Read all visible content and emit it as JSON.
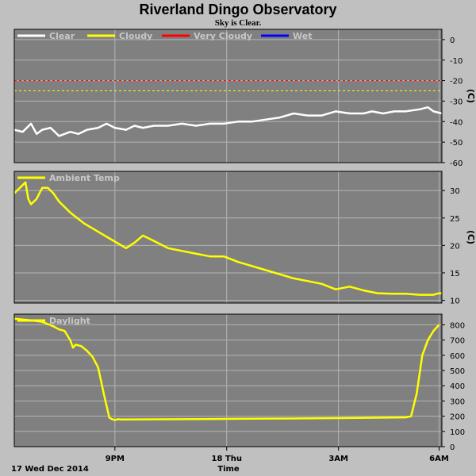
{
  "title": "Riverland Dingo Observatory",
  "subtitle": "Sky is Clear.",
  "colors": {
    "clear": "#ffffff",
    "cloudy": "#ffff00",
    "very_cloudy": "#ff0000",
    "wet": "#0000ff",
    "panel_bg": "#808080",
    "page_bg": "#c0c0c0",
    "grid": "#b4b4b4"
  },
  "x_axis": {
    "label": "Time",
    "date_label": "17 Wed Dec 2014",
    "ticks": [
      "9PM",
      "18 Thu",
      "3AM",
      "6AM"
    ]
  },
  "chart_data": [
    {
      "type": "line",
      "name": "sky",
      "unit": "(C)",
      "ylim": [
        -60,
        5
      ],
      "yticks": [
        0,
        -10,
        -20,
        -30,
        -40,
        -50,
        -60
      ],
      "legend": [
        "Clear",
        "Cloudy",
        "Very Cloudy",
        "Wet"
      ],
      "thresholds": [
        {
          "value": -20,
          "color": "#ff0000"
        },
        {
          "value": -25,
          "color": "#ffff00"
        }
      ],
      "series": [
        {
          "name": "Clear",
          "x": [
            0,
            0.3,
            0.6,
            0.8,
            1.0,
            1.3,
            1.6,
            2.0,
            2.3,
            2.6,
            3.0,
            3.3,
            3.6,
            4.0,
            4.3,
            4.6,
            5.0,
            5.5,
            6.0,
            6.5,
            7.0,
            7.5,
            8.0,
            8.5,
            9.0,
            9.5,
            10.0,
            10.5,
            11.0,
            11.5,
            12.0,
            12.5,
            12.8,
            13.2,
            13.6,
            14.0,
            14.5,
            14.8,
            15.0,
            15.3
          ],
          "y": [
            -44,
            -45,
            -41,
            -46,
            -44,
            -43,
            -47,
            -45,
            -46,
            -44,
            -43,
            -41,
            -43,
            -44,
            -42,
            -43,
            -42,
            -42,
            -41,
            -42,
            -41,
            -41,
            -40,
            -40,
            -39,
            -38,
            -36,
            -37,
            -37,
            -35,
            -36,
            -36,
            -35,
            -36,
            -35,
            -35,
            -34,
            -33,
            -35,
            -36
          ]
        }
      ]
    },
    {
      "type": "line",
      "name": "ambient",
      "unit": "(C)",
      "ylim": [
        9.5,
        33.5
      ],
      "yticks": [
        30,
        25,
        20,
        15,
        10
      ],
      "legend": [
        "Ambient Temp"
      ],
      "series": [
        {
          "name": "Ambient Temp",
          "x": [
            0,
            0.2,
            0.4,
            0.5,
            0.6,
            0.8,
            1.0,
            1.2,
            1.4,
            1.6,
            2.0,
            2.5,
            3.0,
            3.5,
            4.0,
            4.3,
            4.6,
            5.0,
            5.5,
            6.0,
            7.0,
            7.5,
            8.0,
            9.0,
            10.0,
            10.5,
            11.0,
            11.5,
            12.0,
            12.5,
            13.0,
            13.5,
            14.0,
            14.5,
            15.0,
            15.2,
            15.3
          ],
          "y": [
            29.5,
            30.5,
            31.5,
            28.5,
            27.5,
            28.5,
            30.5,
            30.5,
            29.5,
            28,
            26,
            24,
            22.5,
            21,
            19.5,
            20.5,
            21.8,
            20.8,
            19.5,
            19,
            18,
            18,
            17,
            15.5,
            14,
            13.5,
            13,
            12,
            12.5,
            11.8,
            11.3,
            11.2,
            11.2,
            11,
            11,
            11.3,
            11.3
          ]
        }
      ]
    },
    {
      "type": "line",
      "name": "daylight",
      "unit": "",
      "ylim": [
        0,
        870
      ],
      "yticks": [
        800,
        700,
        600,
        500,
        400,
        300,
        200,
        100,
        0
      ],
      "legend": [
        "Daylight"
      ],
      "series": [
        {
          "name": "Daylight",
          "x": [
            0,
            0.3,
            0.6,
            1.0,
            1.4,
            1.6,
            1.8,
            2.0,
            2.1,
            2.2,
            2.4,
            2.6,
            2.8,
            3.0,
            3.2,
            3.4,
            3.5,
            3.6,
            3.7,
            3.8,
            4.0,
            6.0,
            8.0,
            10.0,
            12.0,
            14.0,
            14.2,
            14.4,
            14.6,
            14.8,
            15.0,
            15.2
          ],
          "y": [
            840,
            835,
            830,
            820,
            790,
            770,
            760,
            700,
            650,
            670,
            660,
            630,
            590,
            520,
            350,
            190,
            180,
            175,
            180,
            178,
            178,
            180,
            183,
            185,
            188,
            192,
            200,
            350,
            600,
            700,
            760,
            800
          ]
        }
      ]
    }
  ]
}
